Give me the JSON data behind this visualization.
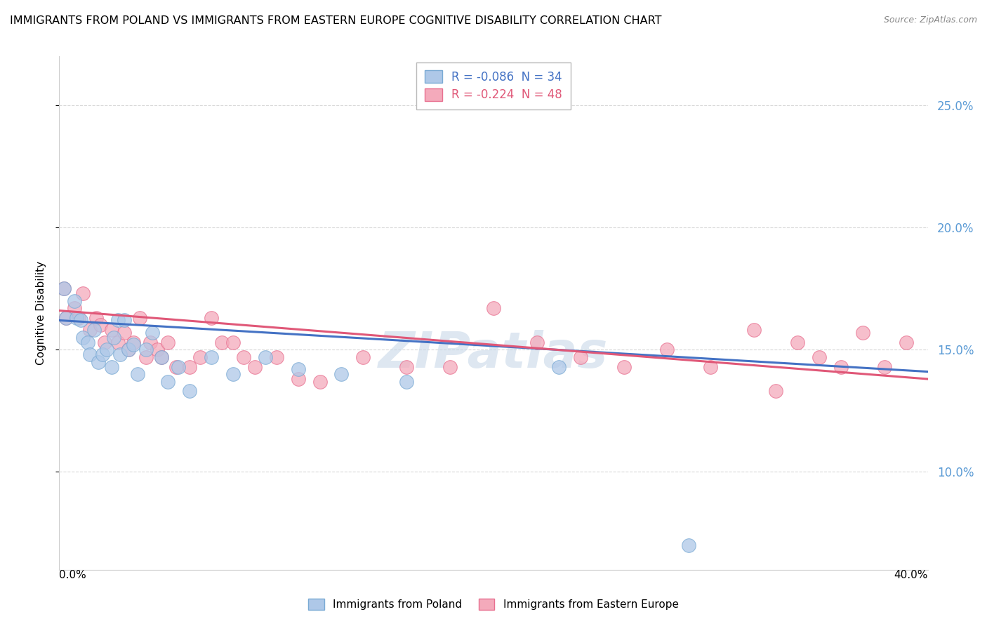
{
  "title": "IMMIGRANTS FROM POLAND VS IMMIGRANTS FROM EASTERN EUROPE COGNITIVE DISABILITY CORRELATION CHART",
  "source": "Source: ZipAtlas.com",
  "ylabel": "Cognitive Disability",
  "xlim": [
    0.0,
    0.4
  ],
  "ylim": [
    0.06,
    0.27
  ],
  "yticks": [
    0.1,
    0.15,
    0.2,
    0.25
  ],
  "right_ytick_labels": [
    "10.0%",
    "15.0%",
    "20.0%",
    "25.0%"
  ],
  "series1_name": "Immigrants from Poland",
  "series2_name": "Immigrants from Eastern Europe",
  "series1_color": "#aec8e8",
  "series2_color": "#f4aabb",
  "series1_edge": "#7aaad4",
  "series2_edge": "#e87090",
  "line1_color": "#4472c4",
  "line2_color": "#e05878",
  "background_color": "#ffffff",
  "grid_color": "#d8d8d8",
  "poland_x": [
    0.002,
    0.003,
    0.007,
    0.008,
    0.01,
    0.011,
    0.013,
    0.014,
    0.016,
    0.018,
    0.02,
    0.022,
    0.024,
    0.025,
    0.027,
    0.028,
    0.03,
    0.032,
    0.034,
    0.036,
    0.04,
    0.043,
    0.047,
    0.05,
    0.055,
    0.06,
    0.07,
    0.08,
    0.095,
    0.11,
    0.13,
    0.16,
    0.23,
    0.29
  ],
  "poland_y": [
    0.175,
    0.163,
    0.17,
    0.163,
    0.162,
    0.155,
    0.153,
    0.148,
    0.158,
    0.145,
    0.148,
    0.15,
    0.143,
    0.155,
    0.162,
    0.148,
    0.162,
    0.15,
    0.152,
    0.14,
    0.15,
    0.157,
    0.147,
    0.137,
    0.143,
    0.133,
    0.147,
    0.14,
    0.147,
    0.142,
    0.14,
    0.137,
    0.143,
    0.07
  ],
  "eastern_x": [
    0.002,
    0.003,
    0.007,
    0.009,
    0.011,
    0.014,
    0.017,
    0.019,
    0.021,
    0.024,
    0.027,
    0.03,
    0.032,
    0.034,
    0.037,
    0.04,
    0.042,
    0.045,
    0.047,
    0.05,
    0.054,
    0.06,
    0.065,
    0.07,
    0.075,
    0.08,
    0.085,
    0.09,
    0.1,
    0.11,
    0.12,
    0.14,
    0.16,
    0.18,
    0.2,
    0.22,
    0.24,
    0.26,
    0.28,
    0.3,
    0.32,
    0.33,
    0.34,
    0.35,
    0.36,
    0.37,
    0.38,
    0.39
  ],
  "eastern_y": [
    0.175,
    0.163,
    0.167,
    0.163,
    0.173,
    0.158,
    0.163,
    0.16,
    0.153,
    0.158,
    0.153,
    0.157,
    0.15,
    0.153,
    0.163,
    0.147,
    0.153,
    0.15,
    0.147,
    0.153,
    0.143,
    0.143,
    0.147,
    0.163,
    0.153,
    0.153,
    0.147,
    0.143,
    0.147,
    0.138,
    0.137,
    0.147,
    0.143,
    0.143,
    0.167,
    0.153,
    0.147,
    0.143,
    0.15,
    0.143,
    0.158,
    0.133,
    0.153,
    0.147,
    0.143,
    0.157,
    0.143,
    0.153
  ],
  "marker_size": 200,
  "watermark": "ZIPatlas",
  "r1": -0.086,
  "n1": 34,
  "r2": -0.224,
  "n2": 48,
  "line1_x0": 0.0,
  "line1_y0": 0.162,
  "line1_x1": 0.4,
  "line1_y1": 0.141,
  "line2_x0": 0.0,
  "line2_y0": 0.166,
  "line2_x1": 0.4,
  "line2_y1": 0.138
}
